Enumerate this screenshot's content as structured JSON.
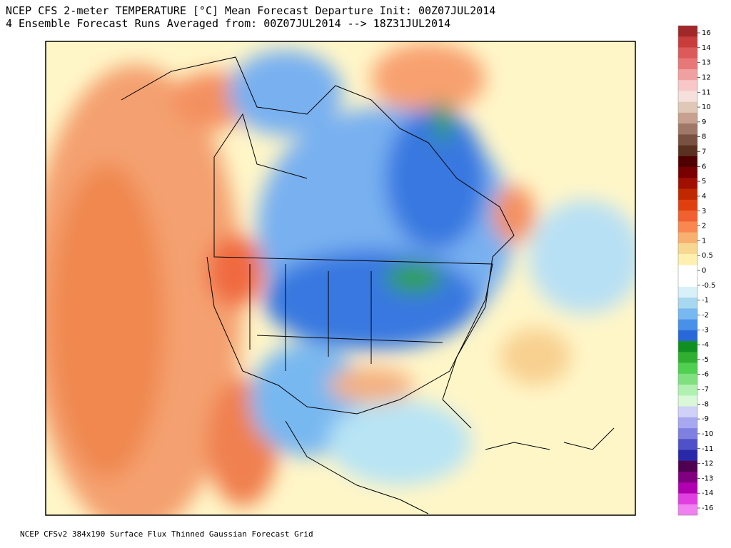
{
  "header": {
    "title_line_1": "NCEP CFS 2-meter TEMPERATURE [°C] Mean Forecast Departure Init: 00Z07JUL2014",
    "title_line_2": "4 Ensemble Forecast Runs Averaged from: 00Z07JUL2014 --> 18Z31JUL2014"
  },
  "footer": "NCEP CFSv2 384x190 Surface Flux Thinned Gaussian Forecast Grid",
  "colorbar": {
    "labels": [
      "16",
      "14",
      "13",
      "12",
      "11",
      "10",
      "9",
      "8",
      "7",
      "6",
      "5",
      "4",
      "3",
      "2",
      "1",
      "0.5",
      "0",
      "-0.5",
      "-1",
      "-2",
      "-3",
      "-4",
      "-5",
      "-6",
      "-7",
      "-8",
      "-9",
      "-10",
      "-11",
      "-12",
      "-13",
      "-14",
      "-16"
    ],
    "colors": [
      "#a02828",
      "#c83c3c",
      "#dc5a5a",
      "#e87878",
      "#f0a0a0",
      "#f8c8c8",
      "#f5e0dc",
      "#e0c8b8",
      "#c8a090",
      "#a07868",
      "#7a5040",
      "#5a3020",
      "#500000",
      "#780000",
      "#a01000",
      "#c02800",
      "#e04010",
      "#f06030",
      "#f88850",
      "#f8b070",
      "#f8d890",
      "#fff0b0",
      "#ffffff",
      "#ffffff",
      "#d8f0f8",
      "#a8d8f0",
      "#78b8f0",
      "#4890e8",
      "#2868d8",
      "#109020",
      "#30b030",
      "#50d050",
      "#80e080",
      "#b0f0b0",
      "#d8f8d8",
      "#d0d0f8",
      "#a8a8f0",
      "#8080e0",
      "#5050c8",
      "#2828a8",
      "#500050",
      "#800080",
      "#b000b0",
      "#e040e0",
      "#f080f0"
    ]
  }
}
